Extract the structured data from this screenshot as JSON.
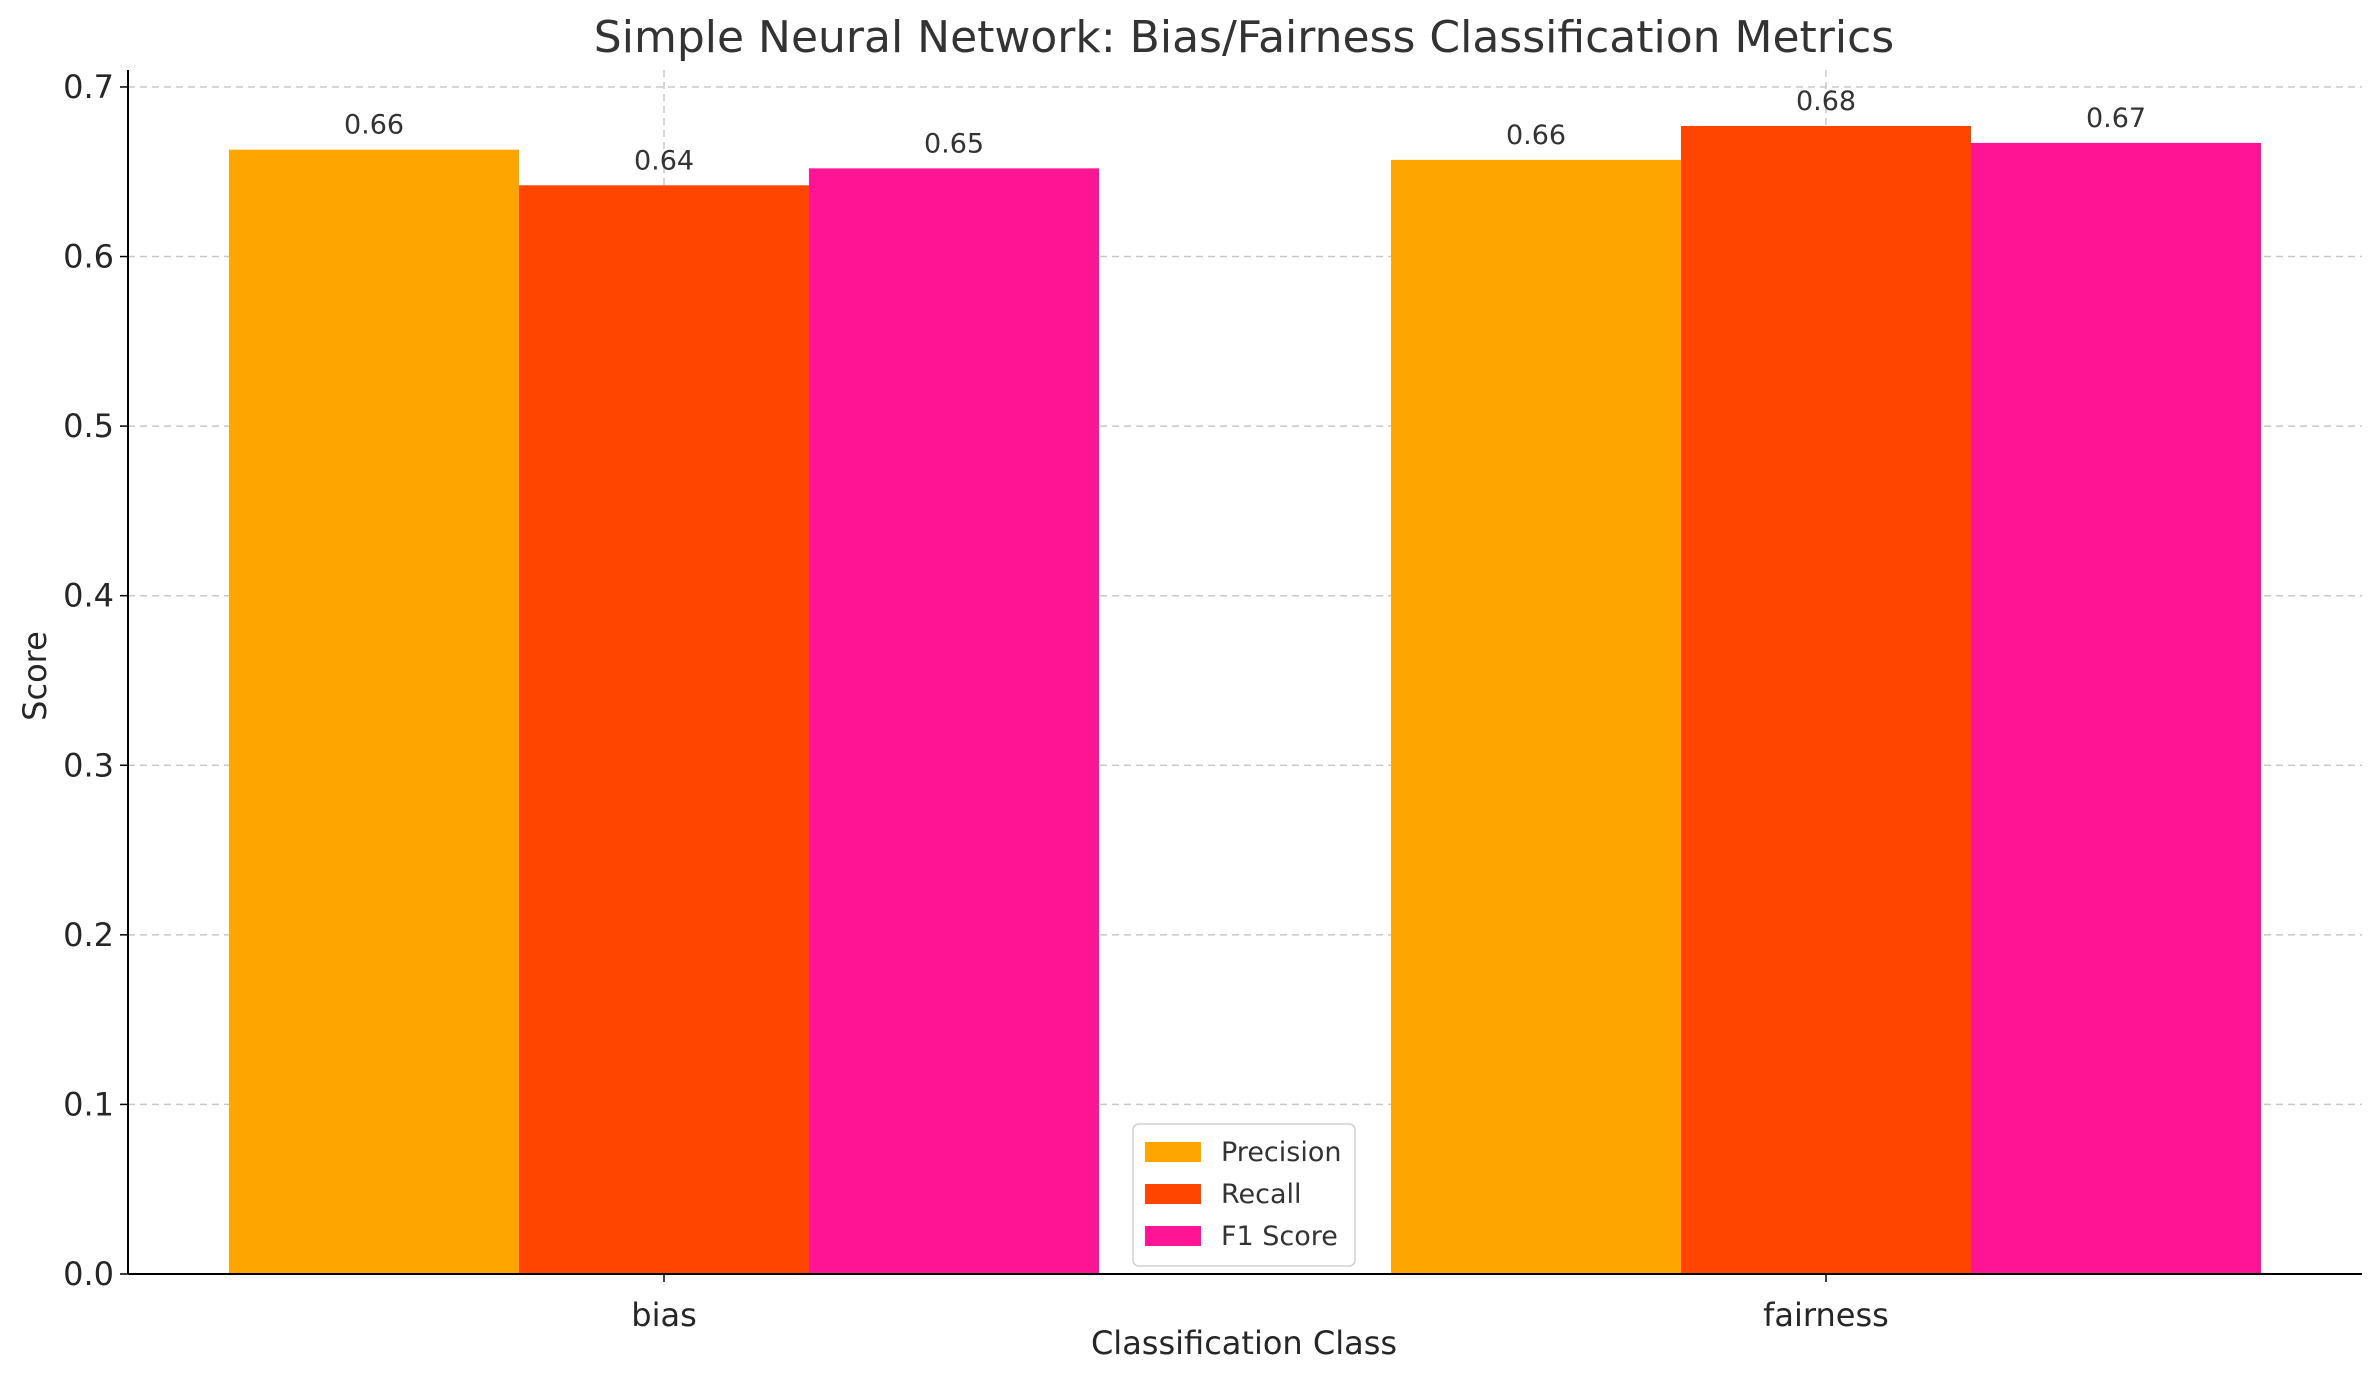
{
  "chart_data": {
    "type": "bar",
    "title": "Simple Neural Network: Bias/Fairness Classification Metrics",
    "xlabel": "Classification Class",
    "ylabel": "Score",
    "categories": [
      "bias",
      "fairness"
    ],
    "series": [
      {
        "name": "Precision",
        "values": [
          0.663,
          0.657
        ],
        "labels": [
          "0.66",
          "0.66"
        ],
        "color": "#FFA500"
      },
      {
        "name": "Recall",
        "values": [
          0.642,
          0.677
        ],
        "labels": [
          "0.64",
          "0.68"
        ],
        "color": "#FF4500"
      },
      {
        "name": "F1 Score",
        "values": [
          0.652,
          0.667
        ],
        "labels": [
          "0.65",
          "0.67"
        ],
        "color": "#FF1493"
      }
    ],
    "ylim": [
      0,
      0.71
    ],
    "yticks": [
      "0.0",
      "0.1",
      "0.2",
      "0.3",
      "0.4",
      "0.5",
      "0.6",
      "0.7"
    ],
    "grid": true,
    "legend_position": "bottom-center"
  }
}
